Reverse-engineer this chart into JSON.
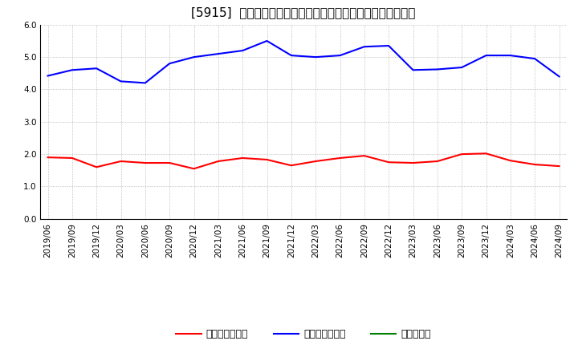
{
  "title": "[5915]  売上債権回転率、買入債務回転率、在庫回転率の推移",
  "x_labels": [
    "2019/06",
    "2019/09",
    "2019/12",
    "2020/03",
    "2020/06",
    "2020/09",
    "2020/12",
    "2021/03",
    "2021/06",
    "2021/09",
    "2021/12",
    "2022/03",
    "2022/06",
    "2022/09",
    "2022/12",
    "2023/03",
    "2023/06",
    "2023/09",
    "2023/12",
    "2024/03",
    "2024/06",
    "2024/09"
  ],
  "accounts_receivable_turnover": [
    1.9,
    1.88,
    1.6,
    1.78,
    1.73,
    1.73,
    1.55,
    1.78,
    1.88,
    1.83,
    1.65,
    1.78,
    1.88,
    1.95,
    1.75,
    1.73,
    1.78,
    2.0,
    2.02,
    1.8,
    1.68,
    1.63
  ],
  "accounts_payable_turnover": [
    4.42,
    4.6,
    4.65,
    4.25,
    4.2,
    4.8,
    5.0,
    5.1,
    5.2,
    5.5,
    5.05,
    5.0,
    5.05,
    5.32,
    5.35,
    4.6,
    4.62,
    4.68,
    5.05,
    5.05,
    4.95,
    4.4
  ],
  "inventory_turnover": [
    null,
    null,
    null,
    null,
    null,
    null,
    null,
    null,
    null,
    null,
    null,
    null,
    null,
    null,
    null,
    null,
    null,
    null,
    null,
    null,
    null,
    null
  ],
  "line_colors": {
    "accounts_receivable": "#ff0000",
    "accounts_payable": "#0000ff",
    "inventory": "#008000"
  },
  "legend_labels": {
    "accounts_receivable": "売上債権回転率",
    "accounts_payable": "買入債務回転率",
    "inventory": "在庫回転率"
  },
  "ylim": [
    0.0,
    6.0
  ],
  "yticks": [
    0.0,
    1.0,
    2.0,
    3.0,
    4.0,
    5.0,
    6.0
  ],
  "background_color": "#ffffff",
  "grid_color": "#999999",
  "title_fontsize": 11,
  "axis_fontsize": 7.5,
  "legend_fontsize": 9,
  "line_width": 1.5
}
